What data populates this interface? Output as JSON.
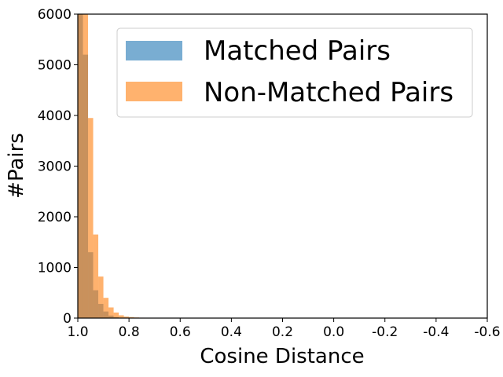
{
  "chart_data": {
    "type": "bar",
    "xlabel": "Cosine Distance",
    "ylabel": "#Pairs",
    "xlim": [
      1.0,
      -0.6
    ],
    "ylim": [
      0,
      6000
    ],
    "x_ticks": [
      "1.0",
      "0.8",
      "0.6",
      "0.4",
      "0.2",
      "0.0",
      "-0.2",
      "-0.4",
      "-0.6"
    ],
    "y_ticks": [
      "0",
      "1000",
      "2000",
      "3000",
      "4000",
      "5000",
      "6000"
    ],
    "bin_width": 0.02,
    "legend_position": "top-right",
    "series": [
      {
        "name": "Matched Pairs",
        "color": "#1f77b4",
        "bins_start": [
          1.0,
          0.98,
          0.96,
          0.94,
          0.92,
          0.9,
          0.88,
          0.86
        ],
        "values": [
          6000,
          5200,
          1300,
          550,
          280,
          130,
          50,
          20
        ]
      },
      {
        "name": "Non-Matched Pairs",
        "color": "#ff7f0e",
        "bins_start": [
          1.0,
          0.98,
          0.96,
          0.94,
          0.92,
          0.9,
          0.88,
          0.86,
          0.84,
          0.82,
          0.8,
          0.78,
          0.76,
          0.74
        ],
        "values": [
          6000,
          6000,
          3950,
          1650,
          820,
          400,
          210,
          110,
          55,
          30,
          20,
          12,
          8,
          5
        ]
      }
    ]
  }
}
